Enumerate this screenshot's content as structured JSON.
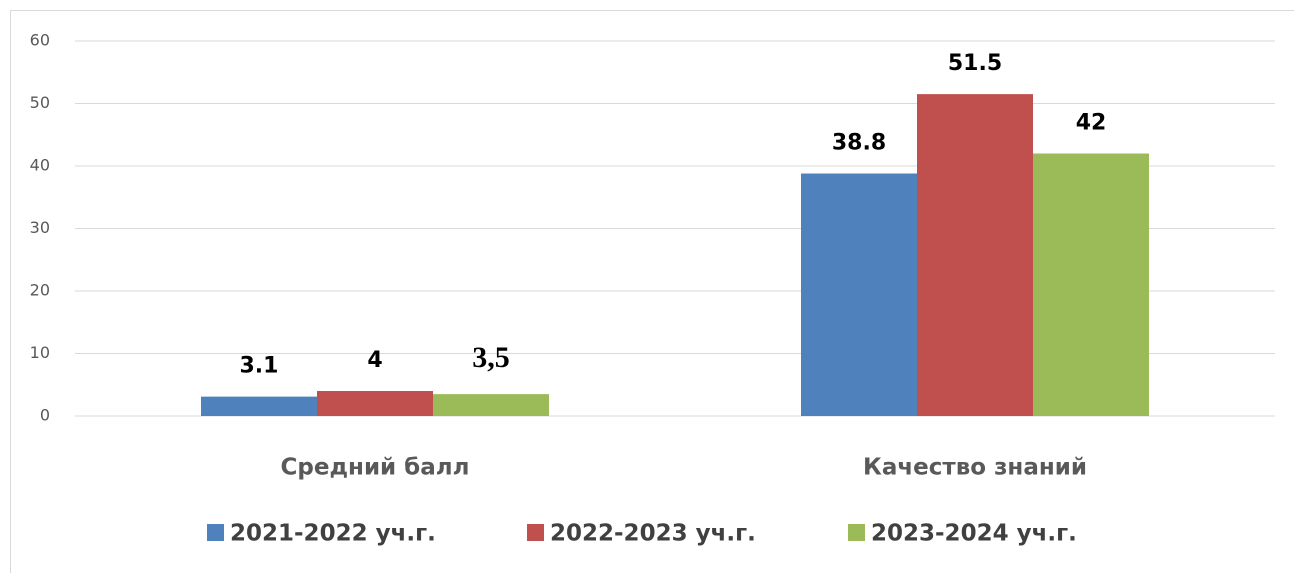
{
  "chart_data": {
    "type": "bar",
    "categories": [
      "Средний балл",
      "Качество знаний"
    ],
    "series": [
      {
        "name": "2021-2022 уч.г.",
        "color": "#4f81bd",
        "values": [
          3.1,
          38.8
        ]
      },
      {
        "name": "2022-2023 уч.г.",
        "color": "#c0504d",
        "values": [
          4,
          51.5
        ]
      },
      {
        "name": "2023-2024 уч.г.",
        "color": "#9bbb59",
        "values": [
          3.5,
          42
        ],
        "value_labels": [
          "3,5",
          "42"
        ]
      }
    ],
    "ylim": [
      0,
      60
    ],
    "yticks": [
      0,
      10,
      20,
      30,
      40,
      50,
      60
    ],
    "grid": true,
    "legend": "bottom"
  }
}
